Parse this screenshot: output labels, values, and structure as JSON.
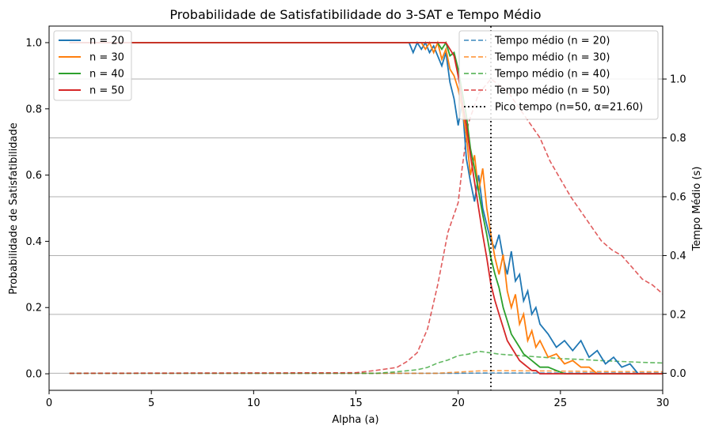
{
  "chart_data": {
    "type": "line",
    "title": "Probabilidade de Satisfatibilidade do 3-SAT e Tempo Médio",
    "xlabel": "Alpha (a)",
    "ylabel_left": "Probabilidade de Satisfatibilidade",
    "ylabel_right": "Tempo Médio (s)",
    "xlim": [
      0,
      30
    ],
    "ylim_left": [
      -0.05,
      1.05
    ],
    "ylim_right": [
      -0.058,
      1.18
    ],
    "x_ticks": [
      0,
      5,
      10,
      15,
      20,
      25,
      30
    ],
    "y_left_ticks": [
      0.0,
      0.2,
      0.4,
      0.6,
      0.8,
      1.0
    ],
    "y_right_ticks": [
      0.0,
      0.2,
      0.4,
      0.6,
      0.8,
      1.0
    ],
    "grid": "horizontal lines on right axis",
    "legend_left_placement": "top-left",
    "legend_right_placement": "top-right",
    "colors": {
      "n20": "#1f77b4",
      "n30": "#ff7f0e",
      "n40": "#2ca02c",
      "n50": "#d62728",
      "peak": "#000000",
      "grid": "#b0b0b0"
    },
    "prob_series": [
      {
        "name": "n = 20",
        "color": "#1f77b4",
        "x": [
          1,
          17.6,
          17.8,
          18.0,
          18.2,
          18.4,
          18.6,
          18.8,
          19.0,
          19.2,
          19.4,
          19.6,
          19.8,
          20.0,
          20.2,
          20.4,
          20.6,
          20.8,
          21.0,
          21.2,
          21.4,
          21.6,
          21.8,
          22.0,
          22.2,
          22.4,
          22.6,
          22.8,
          23.0,
          23.2,
          23.4,
          23.6,
          23.8,
          24.0,
          24.4,
          24.8,
          25.2,
          25.6,
          26.0,
          26.4,
          26.8,
          27.2,
          27.6,
          28.0,
          28.4,
          28.8,
          30
        ],
        "y": [
          1.0,
          1.0,
          0.97,
          1.0,
          0.98,
          1.0,
          0.97,
          0.99,
          0.96,
          0.93,
          0.97,
          0.88,
          0.83,
          0.75,
          0.82,
          0.65,
          0.58,
          0.52,
          0.6,
          0.5,
          0.45,
          0.4,
          0.38,
          0.42,
          0.35,
          0.3,
          0.37,
          0.28,
          0.3,
          0.22,
          0.25,
          0.18,
          0.2,
          0.15,
          0.12,
          0.08,
          0.1,
          0.07,
          0.1,
          0.05,
          0.07,
          0.03,
          0.05,
          0.02,
          0.03,
          0.0,
          0.0
        ]
      },
      {
        "name": "n = 30",
        "color": "#ff7f0e",
        "x": [
          1,
          18.2,
          18.4,
          18.6,
          18.8,
          19.0,
          19.2,
          19.4,
          19.6,
          19.8,
          20.0,
          20.2,
          20.4,
          20.6,
          20.8,
          21.0,
          21.2,
          21.4,
          21.6,
          21.8,
          22.0,
          22.2,
          22.4,
          22.6,
          22.8,
          23.0,
          23.2,
          23.4,
          23.6,
          23.8,
          24.0,
          24.4,
          24.8,
          25.2,
          25.6,
          26.0,
          26.4,
          26.8,
          27.2,
          30
        ],
        "y": [
          1.0,
          1.0,
          0.98,
          1.0,
          0.97,
          1.0,
          0.95,
          0.98,
          0.92,
          0.9,
          0.86,
          0.8,
          0.72,
          0.6,
          0.66,
          0.55,
          0.62,
          0.5,
          0.42,
          0.35,
          0.3,
          0.36,
          0.25,
          0.2,
          0.24,
          0.15,
          0.18,
          0.1,
          0.13,
          0.08,
          0.1,
          0.05,
          0.06,
          0.03,
          0.04,
          0.02,
          0.02,
          0.0,
          0.0,
          0.0
        ]
      },
      {
        "name": "n = 40",
        "color": "#2ca02c",
        "x": [
          1,
          19.0,
          19.2,
          19.4,
          19.6,
          19.8,
          20.0,
          20.2,
          20.4,
          20.6,
          20.8,
          21.0,
          21.2,
          21.4,
          21.6,
          21.8,
          22.0,
          22.2,
          22.4,
          22.6,
          22.8,
          23.0,
          23.2,
          23.4,
          23.6,
          23.8,
          24.0,
          24.4,
          24.8,
          25.2,
          25.6,
          26.0,
          30
        ],
        "y": [
          1.0,
          1.0,
          0.98,
          1.0,
          0.96,
          0.97,
          0.92,
          0.85,
          0.78,
          0.68,
          0.62,
          0.55,
          0.48,
          0.42,
          0.35,
          0.3,
          0.26,
          0.2,
          0.16,
          0.12,
          0.1,
          0.08,
          0.06,
          0.05,
          0.04,
          0.03,
          0.02,
          0.02,
          0.01,
          0.0,
          0.0,
          0.0,
          0.0
        ]
      },
      {
        "name": "n = 50",
        "color": "#d62728",
        "x": [
          1,
          19.4,
          19.6,
          19.8,
          20.0,
          20.2,
          20.4,
          20.6,
          20.8,
          21.0,
          21.2,
          21.4,
          21.6,
          21.8,
          22.0,
          22.2,
          22.4,
          22.6,
          22.8,
          23.0,
          23.2,
          23.4,
          23.6,
          23.8,
          24.0,
          24.4,
          24.8,
          25.2,
          30
        ],
        "y": [
          1.0,
          1.0,
          0.98,
          0.96,
          0.9,
          0.82,
          0.75,
          0.66,
          0.58,
          0.5,
          0.42,
          0.35,
          0.27,
          0.22,
          0.18,
          0.14,
          0.1,
          0.08,
          0.06,
          0.04,
          0.03,
          0.02,
          0.01,
          0.01,
          0.0,
          0.0,
          0.0,
          0.0,
          0.0
        ]
      }
    ],
    "time_series": [
      {
        "name": "Tempo médio (n = 20)",
        "color": "#1f77b4",
        "x": [
          1,
          20,
          21.6,
          24,
          27,
          30
        ],
        "y": [
          0.0,
          0.0,
          0.001,
          0.001,
          0.001,
          0.001
        ]
      },
      {
        "name": "Tempo médio (n = 30)",
        "color": "#ff7f0e",
        "x": [
          1,
          19,
          20,
          21,
          22,
          24,
          27,
          30
        ],
        "y": [
          0.0,
          0.0,
          0.004,
          0.008,
          0.009,
          0.008,
          0.006,
          0.005
        ]
      },
      {
        "name": "Tempo médio (n = 40)",
        "color": "#2ca02c",
        "x": [
          1,
          16,
          17,
          18,
          18.5,
          19,
          19.5,
          20,
          20.5,
          21,
          21.5,
          22,
          23,
          24,
          25,
          26,
          27,
          28,
          29,
          30
        ],
        "y": [
          0.0,
          0.0,
          0.005,
          0.012,
          0.02,
          0.035,
          0.045,
          0.06,
          0.065,
          0.075,
          0.07,
          0.065,
          0.06,
          0.055,
          0.05,
          0.047,
          0.043,
          0.04,
          0.037,
          0.035
        ]
      },
      {
        "name": "Tempo médio (n = 50)",
        "color": "#d62728",
        "x": [
          1,
          15,
          16,
          17,
          17.5,
          18,
          18.5,
          19,
          19.5,
          20,
          20.2,
          20.5,
          21,
          21.6,
          22,
          22.5,
          23,
          23.5,
          24,
          24.5,
          25,
          25.5,
          26,
          26.5,
          27,
          27.5,
          28,
          28.5,
          29,
          29.5,
          30
        ],
        "y": [
          0.0,
          0.002,
          0.01,
          0.02,
          0.04,
          0.07,
          0.15,
          0.3,
          0.48,
          0.58,
          0.7,
          0.85,
          0.95,
          1.0,
          0.98,
          0.95,
          0.9,
          0.85,
          0.8,
          0.72,
          0.66,
          0.6,
          0.55,
          0.5,
          0.45,
          0.42,
          0.4,
          0.36,
          0.32,
          0.3,
          0.27
        ]
      }
    ],
    "peak": {
      "label": "Pico tempo (n=50, α=21.60)",
      "x": 21.6
    }
  }
}
